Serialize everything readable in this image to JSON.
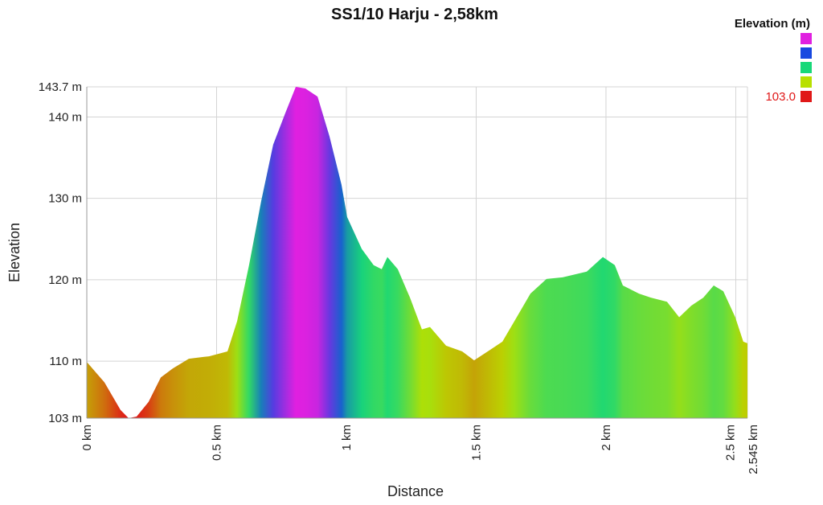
{
  "chart_data": {
    "type": "area",
    "title": "SS1/10 Harju - 2,58km",
    "x_label": "Distance",
    "y_label": "Elevation",
    "legend_title": "Elevation (m)",
    "color_scale": [
      {
        "value": 143.7,
        "color": "#e020e0"
      },
      {
        "value": 133.5,
        "color": "#1848e0"
      },
      {
        "value": 123.4,
        "color": "#18d878"
      },
      {
        "value": 113.2,
        "color": "#b8e000"
      },
      {
        "value": 103,
        "label": "103.0",
        "color": "#e01818"
      }
    ],
    "x": [
      0,
      0.068,
      0.13,
      0.161,
      0.192,
      0.238,
      0.285,
      0.331,
      0.393,
      0.471,
      0.542,
      0.579,
      0.625,
      0.672,
      0.718,
      0.765,
      0.805,
      0.842,
      0.889,
      0.935,
      0.981,
      1.003,
      1.059,
      1.105,
      1.136,
      1.158,
      1.198,
      1.245,
      1.291,
      1.322,
      1.384,
      1.446,
      1.492,
      1.554,
      1.601,
      1.647,
      1.709,
      1.771,
      1.833,
      1.926,
      1.988,
      2.034,
      2.065,
      2.127,
      2.173,
      2.235,
      2.282,
      2.328,
      2.375,
      2.415,
      2.452,
      2.498,
      2.529,
      2.545
    ],
    "values": [
      109.9,
      107.4,
      104,
      103,
      103.2,
      105,
      108,
      109.1,
      110.3,
      110.6,
      111.2,
      114.9,
      121.8,
      129.7,
      136.6,
      140.5,
      143.7,
      143.5,
      142.5,
      137.6,
      131.7,
      127.7,
      123.8,
      121.8,
      121.3,
      122.8,
      121.3,
      117.8,
      113.9,
      114.2,
      111.9,
      111.2,
      110.1,
      111.4,
      112.4,
      114.9,
      118.3,
      120.1,
      120.3,
      121,
      122.8,
      121.8,
      119.3,
      118.3,
      117.8,
      117.3,
      115.4,
      116.8,
      117.8,
      119.3,
      118.6,
      115.4,
      112.4,
      112.2
    ],
    "xlim": [
      0,
      2.545
    ],
    "ylim": [
      103,
      143.7
    ],
    "xticks": [
      {
        "value": 0,
        "label": "0 km"
      },
      {
        "value": 0.5,
        "label": "0.5 km"
      },
      {
        "value": 1,
        "label": "1 km"
      },
      {
        "value": 1.5,
        "label": "1.5 km"
      },
      {
        "value": 2,
        "label": "2 km"
      },
      {
        "value": 2.5,
        "label": "2.5 km"
      },
      {
        "value": 2.545,
        "label": "2.545 km"
      }
    ],
    "yticks": [
      {
        "value": 103,
        "label": "103 m"
      },
      {
        "value": 110,
        "label": "110 m"
      },
      {
        "value": 120,
        "label": "120 m"
      },
      {
        "value": 130,
        "label": "130 m"
      },
      {
        "value": 140,
        "label": "140 m"
      },
      {
        "value": 143.7,
        "label": "143.7 m"
      }
    ],
    "grid": true
  }
}
